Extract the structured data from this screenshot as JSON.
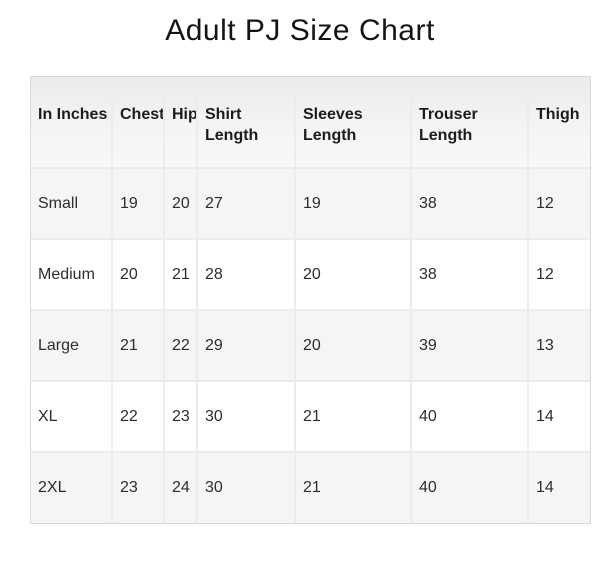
{
  "page": {
    "title": "Adult PJ Size Chart"
  },
  "table": {
    "unit": "In Inches",
    "columns": {
      "size": "In Inches",
      "chest": "Chest",
      "hip": "Hip",
      "shirt_length": "Shirt Length",
      "sleeves_length": "Sleeves Length",
      "trouser_length": "Trouser Length",
      "thigh": "Thigh"
    },
    "rows": [
      {
        "size": "Small",
        "chest": "19",
        "hip": "20",
        "shirt_length": "27",
        "sleeves_length": "19",
        "trouser_length": "38",
        "thigh": "12"
      },
      {
        "size": "Medium",
        "chest": "20",
        "hip": "21",
        "shirt_length": "28",
        "sleeves_length": "20",
        "trouser_length": "38",
        "thigh": "12"
      },
      {
        "size": "Large",
        "chest": "21",
        "hip": "22",
        "shirt_length": "29",
        "sleeves_length": "20",
        "trouser_length": "39",
        "thigh": "13"
      },
      {
        "size": "XL",
        "chest": "22",
        "hip": "23",
        "shirt_length": "30",
        "sleeves_length": "21",
        "trouser_length": "40",
        "thigh": "14"
      },
      {
        "size": "2XL",
        "chest": "23",
        "hip": "24",
        "shirt_length": "30",
        "sleeves_length": "21",
        "trouser_length": "40",
        "thigh": "14"
      }
    ],
    "colors": {
      "header_bg_top": "#ebebeb",
      "header_bg_bottom": "#f8f8f8",
      "striped_row_bg": "#f5f5f5",
      "plain_row_bg": "#ffffff",
      "border": "#ececec",
      "outer_border": "#d9d9d9",
      "header_text": "#1c1c1c",
      "cell_text": "#2d2d2d"
    }
  }
}
